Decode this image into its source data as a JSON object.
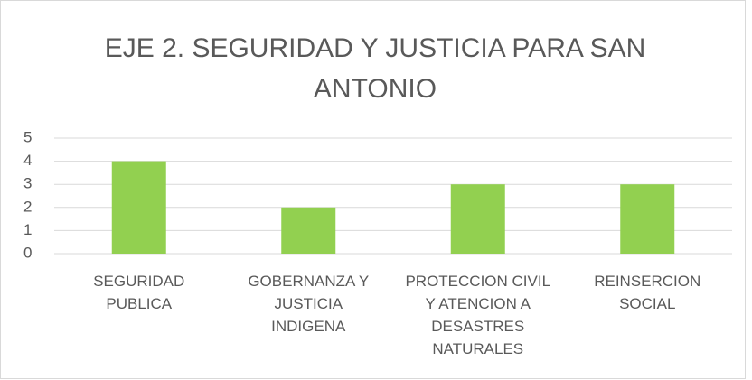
{
  "chart_data": {
    "type": "bar",
    "title": "EJE 2. SEGURIDAD Y JUSTICIA PARA SAN ANTONIO",
    "categories": [
      "SEGURIDAD PUBLICA",
      "GOBERNANZA Y JUSTICIA INDIGENA",
      "PROTECCION CIVIL Y ATENCION A DESASTRES NATURALES",
      "REINSERCION SOCIAL"
    ],
    "values": [
      4,
      2,
      3,
      3
    ],
    "color": "#92d050",
    "ylim": [
      0,
      5
    ],
    "yticks": [
      0,
      1,
      2,
      3,
      4,
      5
    ],
    "grid": true
  }
}
